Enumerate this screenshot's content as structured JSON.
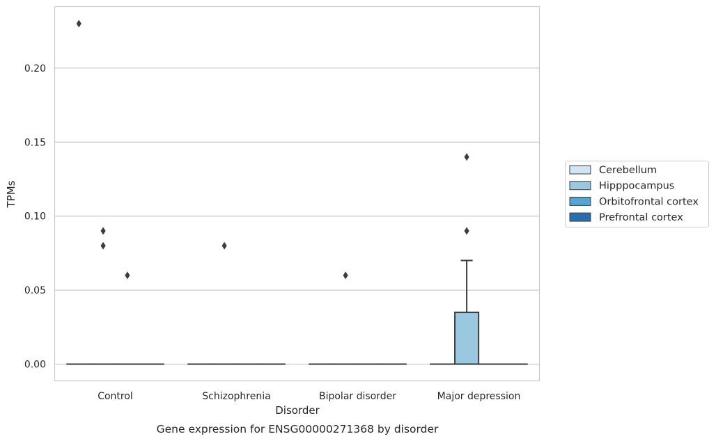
{
  "chart_data": {
    "type": "box",
    "title": "",
    "caption": "Gene expression for ENSG00000271368 by disorder",
    "xlabel": "Disorder",
    "ylabel": "TPMs",
    "categories": [
      "Control",
      "Schizophrenia",
      "Bipolar disorder",
      "Major depression"
    ],
    "yticks": [
      0.0,
      0.05,
      0.1,
      0.15,
      0.2
    ],
    "ytick_labels": [
      "0.00",
      "0.05",
      "0.10",
      "0.15",
      "0.20"
    ],
    "ylim": [
      -0.011,
      0.241
    ],
    "grid": "horizontal",
    "legend_placement": "right",
    "series": [
      {
        "name": "Cerebellum",
        "color": "#d3e4f3",
        "boxes": [
          {
            "category": "Control",
            "q1": 0,
            "median": 0,
            "q3": 0,
            "whisker_low": 0,
            "whisker_high": 0,
            "outliers": [
              0.23
            ]
          },
          {
            "category": "Schizophrenia",
            "q1": 0,
            "median": 0,
            "q3": 0,
            "whisker_low": 0,
            "whisker_high": 0,
            "outliers": []
          },
          {
            "category": "Bipolar disorder",
            "q1": 0,
            "median": 0,
            "q3": 0,
            "whisker_low": 0,
            "whisker_high": 0,
            "outliers": []
          },
          {
            "category": "Major depression",
            "q1": 0,
            "median": 0,
            "q3": 0,
            "whisker_low": 0,
            "whisker_high": 0,
            "outliers": []
          }
        ]
      },
      {
        "name": "Hipppocampus",
        "color": "#9ac8e0",
        "boxes": [
          {
            "category": "Control",
            "q1": 0,
            "median": 0,
            "q3": 0,
            "whisker_low": 0,
            "whisker_high": 0,
            "outliers": [
              0.09,
              0.08
            ]
          },
          {
            "category": "Schizophrenia",
            "q1": 0,
            "median": 0,
            "q3": 0,
            "whisker_low": 0,
            "whisker_high": 0,
            "outliers": [
              0.08
            ]
          },
          {
            "category": "Bipolar disorder",
            "q1": 0,
            "median": 0,
            "q3": 0,
            "whisker_low": 0,
            "whisker_high": 0,
            "outliers": [
              0.06
            ]
          },
          {
            "category": "Major depression",
            "q1": 0,
            "median": 0,
            "q3": 0.035,
            "whisker_low": 0,
            "whisker_high": 0.07,
            "outliers": [
              0.14,
              0.09
            ]
          }
        ]
      },
      {
        "name": "Orbitofrontal cortex",
        "color": "#5ba3cf",
        "boxes": [
          {
            "category": "Control",
            "q1": 0,
            "median": 0,
            "q3": 0,
            "whisker_low": 0,
            "whisker_high": 0,
            "outliers": [
              0.06
            ]
          },
          {
            "category": "Schizophrenia",
            "q1": 0,
            "median": 0,
            "q3": 0,
            "whisker_low": 0,
            "whisker_high": 0,
            "outliers": []
          },
          {
            "category": "Bipolar disorder",
            "q1": 0,
            "median": 0,
            "q3": 0,
            "whisker_low": 0,
            "whisker_high": 0,
            "outliers": []
          },
          {
            "category": "Major depression",
            "q1": 0,
            "median": 0,
            "q3": 0,
            "whisker_low": 0,
            "whisker_high": 0,
            "outliers": []
          }
        ]
      },
      {
        "name": "Prefrontal cortex",
        "color": "#2a6eae",
        "boxes": [
          {
            "category": "Control",
            "q1": 0,
            "median": 0,
            "q3": 0,
            "whisker_low": 0,
            "whisker_high": 0,
            "outliers": []
          },
          {
            "category": "Schizophrenia",
            "q1": 0,
            "median": 0,
            "q3": 0,
            "whisker_low": 0,
            "whisker_high": 0,
            "outliers": []
          },
          {
            "category": "Bipolar disorder",
            "q1": 0,
            "median": 0,
            "q3": 0,
            "whisker_low": 0,
            "whisker_high": 0,
            "outliers": []
          },
          {
            "category": "Major depression",
            "q1": 0,
            "median": 0,
            "q3": 0,
            "whisker_low": 0,
            "whisker_high": 0,
            "outliers": []
          }
        ]
      }
    ]
  }
}
